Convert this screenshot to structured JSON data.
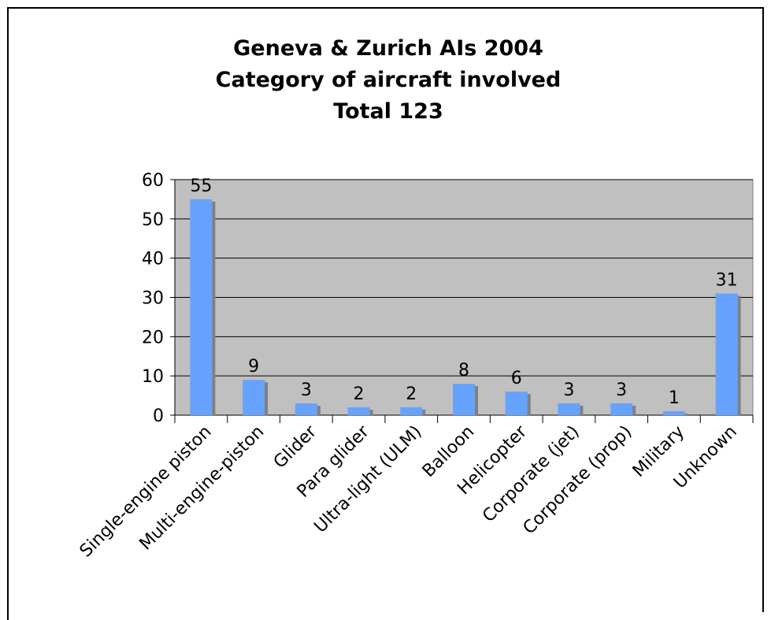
{
  "chart_data": {
    "type": "bar",
    "title": [
      "Geneva & Zurich AIs 2004",
      "Category of aircraft involved",
      "Total 123"
    ],
    "categories": [
      "Single-engine piston",
      "Multi-engine-piston",
      "Glider",
      "Para glider",
      "Ultra-light (ULM)",
      "Balloon",
      "Helicopter",
      "Corporate (jet)",
      "Corporate (prop)",
      "Military",
      "Unknown"
    ],
    "values": [
      55,
      9,
      3,
      2,
      2,
      8,
      6,
      3,
      3,
      1,
      31
    ],
    "color": "#66a3ff",
    "ylim": [
      0,
      60
    ],
    "yticks": [
      0,
      10,
      20,
      30,
      40,
      50,
      60
    ],
    "grid": true
  }
}
